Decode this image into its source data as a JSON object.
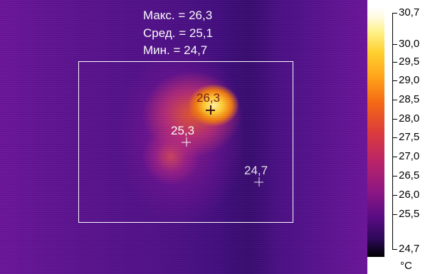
{
  "stats": [
    {
      "label": "Макс.",
      "value": "26,3"
    },
    {
      "label": "Сред.",
      "value": "25,1"
    },
    {
      "label": "Мин.",
      "value": "24,7"
    }
  ],
  "spots": [
    {
      "name": "max-spot",
      "value": "26,3",
      "color": "#7a1a1a"
    },
    {
      "name": "mid-spot",
      "value": "25,3",
      "color": "#ffffff"
    },
    {
      "name": "min-spot",
      "value": "24,7",
      "color": "#e8e8e8"
    }
  ],
  "scale": {
    "max": "30,7",
    "min": "24,7",
    "ticks": [
      "30,0",
      "29,5",
      "29,0",
      "28,5",
      "28,0",
      "27,5",
      "27,0",
      "26,5",
      "26,0",
      "25,5"
    ],
    "unit": "°C"
  },
  "palette": {
    "hot": "#ffffff",
    "cold": "#000000",
    "accent": "#ffcc33"
  }
}
